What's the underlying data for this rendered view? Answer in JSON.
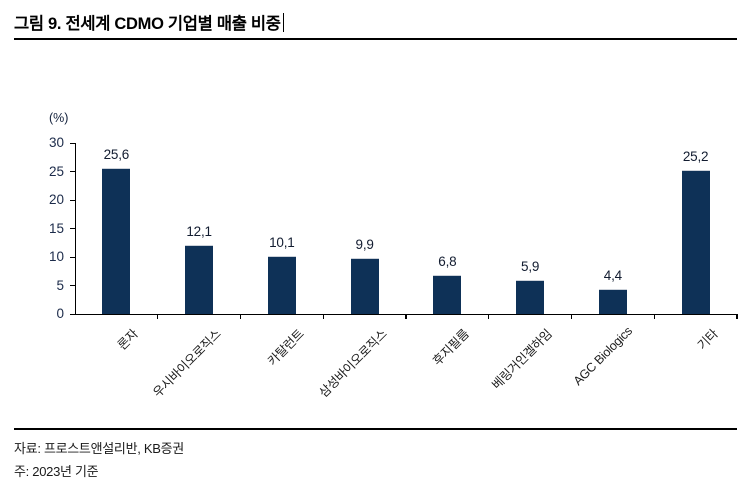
{
  "header": {
    "title": "그림 9. 전세계 CDMO 기업별 매출 비중"
  },
  "chart_data": {
    "type": "bar",
    "title": "그림 9. 전세계 CDMO 기업별 매출 비중",
    "unit_label": "(%)",
    "categories": [
      "론자",
      "우시바이오로직스",
      "카탈런트",
      "삼성바이오로직스",
      "후지필름",
      "베링거인겔하임",
      "AGC Biologics",
      "기타"
    ],
    "values": [
      25.6,
      12.1,
      10.1,
      9.9,
      6.8,
      5.9,
      4.4,
      25.2
    ],
    "value_labels": [
      "25,6",
      "12,1",
      "10,1",
      "9,9",
      "6,8",
      "5,9",
      "4,4",
      "25,2"
    ],
    "xlabel": "",
    "ylabel": "(%)",
    "ylim": [
      0,
      30
    ],
    "yticks": [
      0,
      5,
      10,
      15,
      20,
      25,
      30
    ],
    "grid": "off",
    "legend": "none",
    "bar_color": "#0e3157",
    "axis_color": "#000000"
  },
  "footer": {
    "source": "자료: 프로스트앤설리반, KB증권",
    "note": "주: 2023년 기준"
  }
}
